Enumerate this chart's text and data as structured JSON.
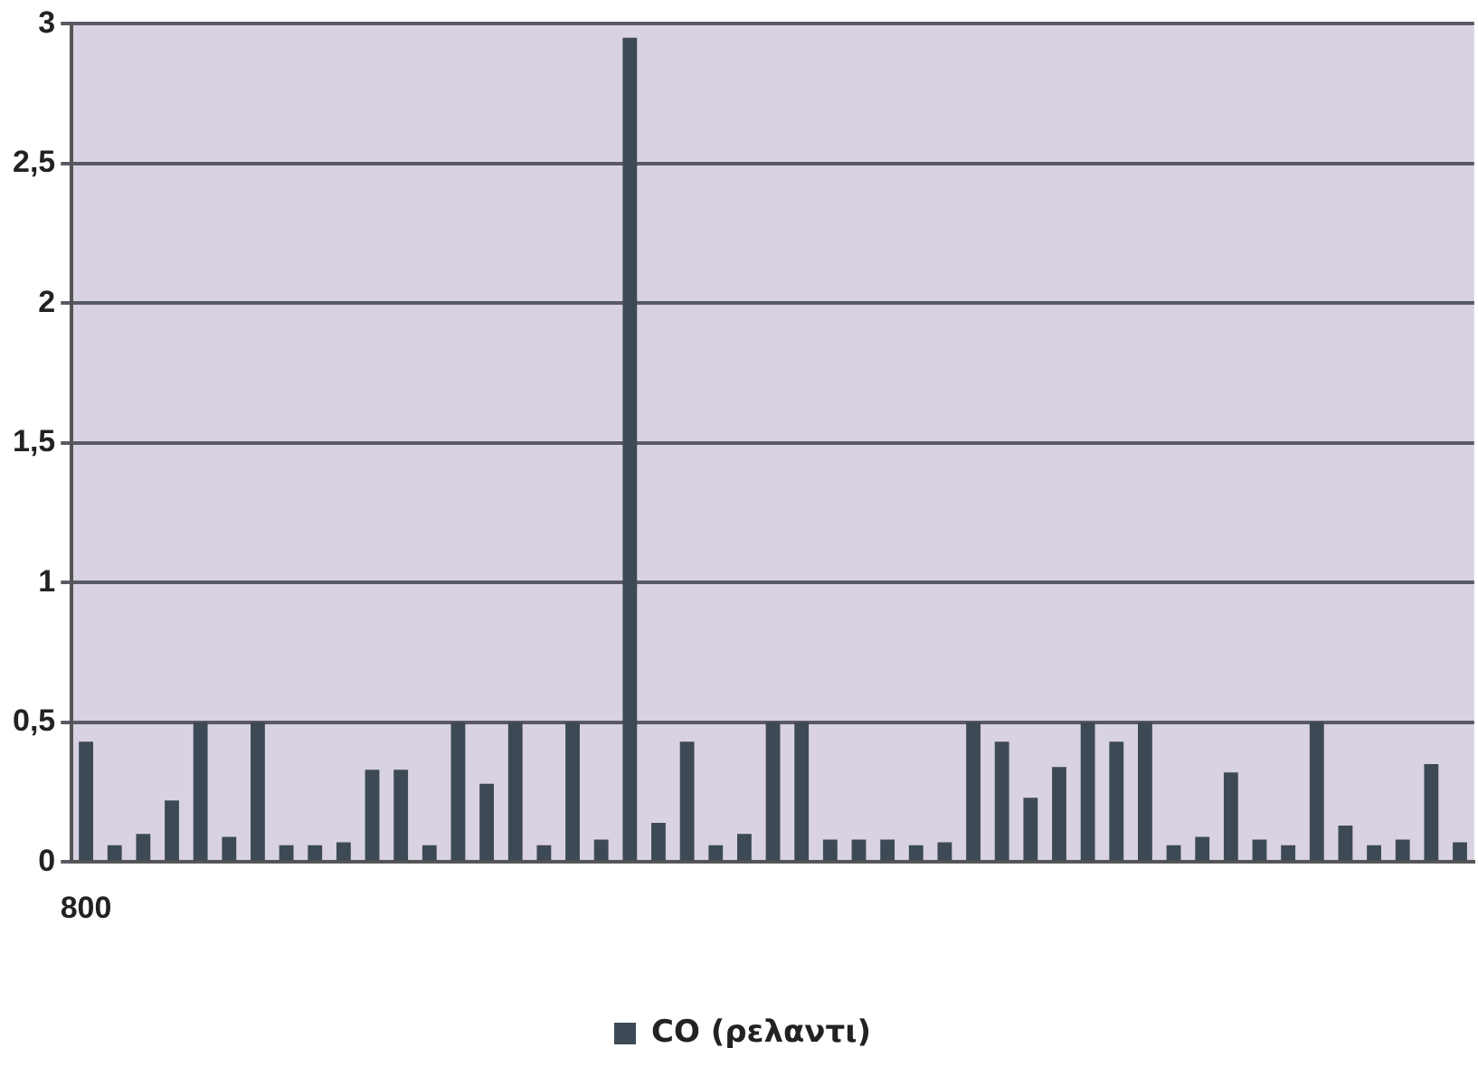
{
  "chart_data": {
    "type": "bar",
    "categories": [
      "800",
      null,
      null,
      null,
      null,
      null,
      null,
      null,
      null,
      null,
      null,
      null,
      null,
      null,
      null,
      null,
      null,
      null,
      null,
      null,
      null,
      null,
      null,
      null,
      null,
      null,
      null,
      null,
      null,
      null,
      null,
      null,
      null,
      null,
      null,
      null,
      null,
      null,
      null,
      null,
      null,
      null,
      null,
      null,
      null,
      null,
      null,
      null,
      null
    ],
    "series": [
      {
        "name": "CO (ρελαντι)",
        "color": "#3d4a55",
        "values": [
          0.43,
          0.06,
          0.1,
          0.22,
          0.5,
          0.09,
          0.5,
          0.06,
          0.06,
          0.07,
          0.33,
          0.33,
          0.06,
          0.5,
          0.28,
          0.5,
          0.06,
          0.5,
          0.08,
          2.95,
          0.14,
          0.43,
          0.06,
          0.1,
          0.5,
          0.5,
          0.08,
          0.08,
          0.08,
          0.06,
          0.07,
          0.5,
          0.43,
          0.23,
          0.34,
          0.5,
          0.43,
          0.5,
          0.06,
          0.09,
          0.32,
          0.08,
          0.06,
          0.5,
          0.13,
          0.06,
          0.08,
          0.35,
          0.07
        ]
      }
    ],
    "ylim": [
      0,
      3
    ],
    "yticks": [
      0,
      {
        "value": 0.5,
        "label": "0,5"
      },
      1,
      {
        "value": 1.5,
        "label": "1,5"
      },
      2,
      {
        "value": 2.5,
        "label": "2,5"
      },
      3
    ],
    "grid": "y",
    "legend": "bottom"
  }
}
